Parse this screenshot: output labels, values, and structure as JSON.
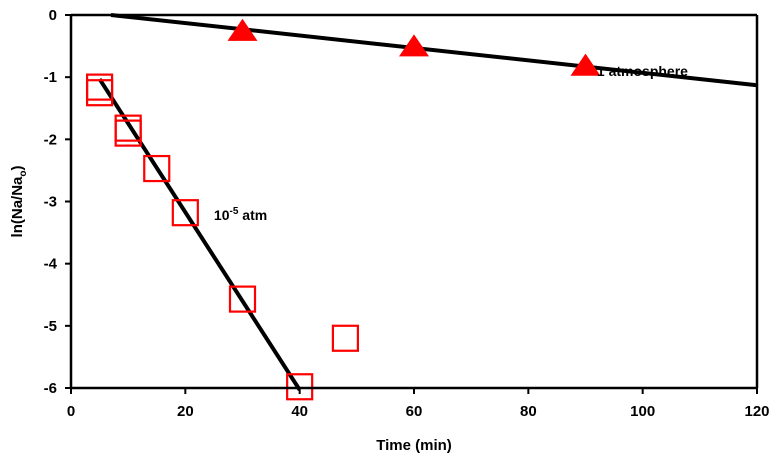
{
  "chart_data": {
    "type": "scatter",
    "xlabel": "Time (min)",
    "ylabel": {
      "main": "ln(Na/Na",
      "subscript": "o",
      "close": ")"
    },
    "xlim": [
      0,
      120
    ],
    "ylim": [
      -6,
      0
    ],
    "xticks": [
      "0",
      "20",
      "40",
      "60",
      "80",
      "100",
      "120"
    ],
    "yticks": [
      "0",
      "-1",
      "-2",
      "-3",
      "-4",
      "-5",
      "-6"
    ],
    "grid": false,
    "series": [
      {
        "marker": "triangle",
        "color": "#ff0000",
        "points": [
          [
            30,
            -0.27
          ],
          [
            60,
            -0.52
          ],
          [
            90,
            -0.83
          ]
        ],
        "fit_line": [
          [
            7,
            0
          ],
          [
            120,
            -1.13
          ]
        ]
      },
      {
        "marker": "open-square",
        "color": "#ff0000",
        "points": [
          [
            5,
            -1.16
          ],
          [
            5,
            -1.25
          ],
          [
            10,
            -1.82
          ],
          [
            10,
            -1.9
          ],
          [
            15,
            -2.47
          ],
          [
            20,
            -3.18
          ],
          [
            30,
            -4.57
          ],
          [
            40,
            -5.98
          ],
          [
            48,
            -5.2
          ]
        ],
        "fit_line": [
          [
            5,
            -1.03
          ],
          [
            40,
            -6.03
          ]
        ]
      }
    ],
    "annotations": [
      {
        "text": "1 atmosphere",
        "x": 92,
        "y": -0.98
      },
      {
        "text_base": "10",
        "text_sup": "-5",
        "text_rest": " atm",
        "x": 25,
        "y": -3.3
      }
    ]
  }
}
